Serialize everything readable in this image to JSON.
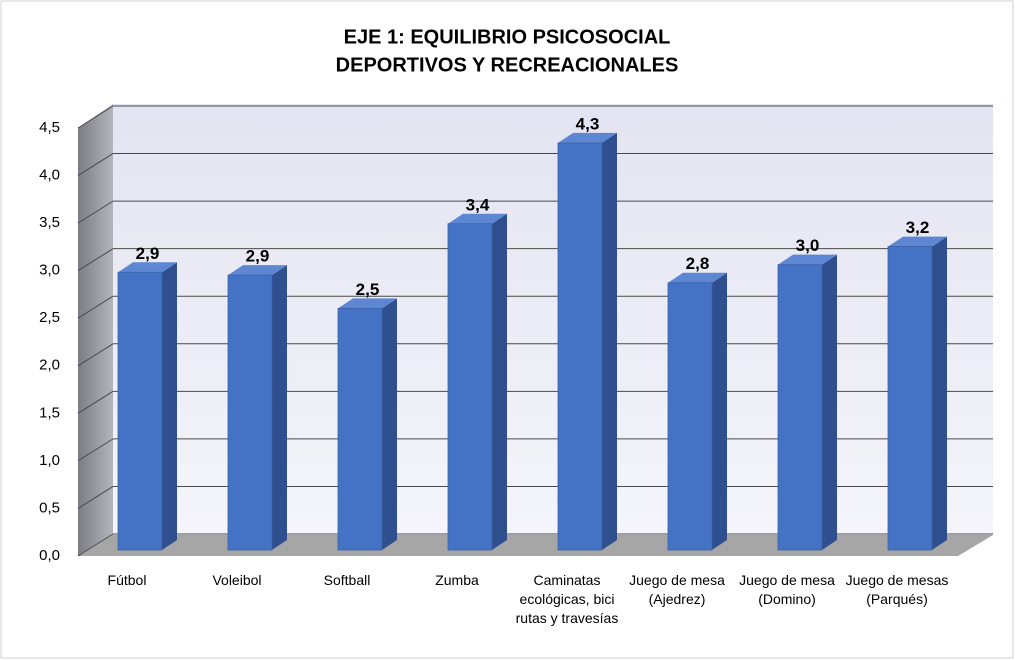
{
  "chart_data": {
    "type": "bar3d",
    "title": [
      "EJE 1: EQUILIBRIO PSICOSOCIAL",
      "DEPORTIVOS Y RECREACIONALES"
    ],
    "categories": [
      "Fútbol",
      "Voleibol",
      "Softball",
      "Zumba",
      "Caminatas ecológicas, bici rutas y travesías",
      "Juego de mesa (Ajedrez)",
      "Juego de mesa (Domino)",
      "Juego de mesas (Parqués)"
    ],
    "values": [
      2.92,
      2.89,
      2.54,
      3.43,
      4.28,
      2.81,
      3.0,
      3.19
    ],
    "value_labels": [
      "2,9",
      "2,9",
      "2,5",
      "3,4",
      "4,3",
      "2,8",
      "3,0",
      "3,2"
    ],
    "color": "#4472c4",
    "ylim": [
      0,
      4.5
    ],
    "yticks": [
      {
        "value": 0,
        "label": "0,0"
      },
      {
        "value": 0.5,
        "label": "0,5"
      },
      {
        "value": 1,
        "label": "1,0"
      },
      {
        "value": 1.5,
        "label": "1,5"
      },
      {
        "value": 2,
        "label": "2,0"
      },
      {
        "value": 2.5,
        "label": "2,5"
      },
      {
        "value": 3,
        "label": "3,0"
      },
      {
        "value": 3.5,
        "label": "3,5"
      },
      {
        "value": 4,
        "label": "4,0"
      },
      {
        "value": 4.5,
        "label": "4,5"
      }
    ],
    "grid": true
  }
}
